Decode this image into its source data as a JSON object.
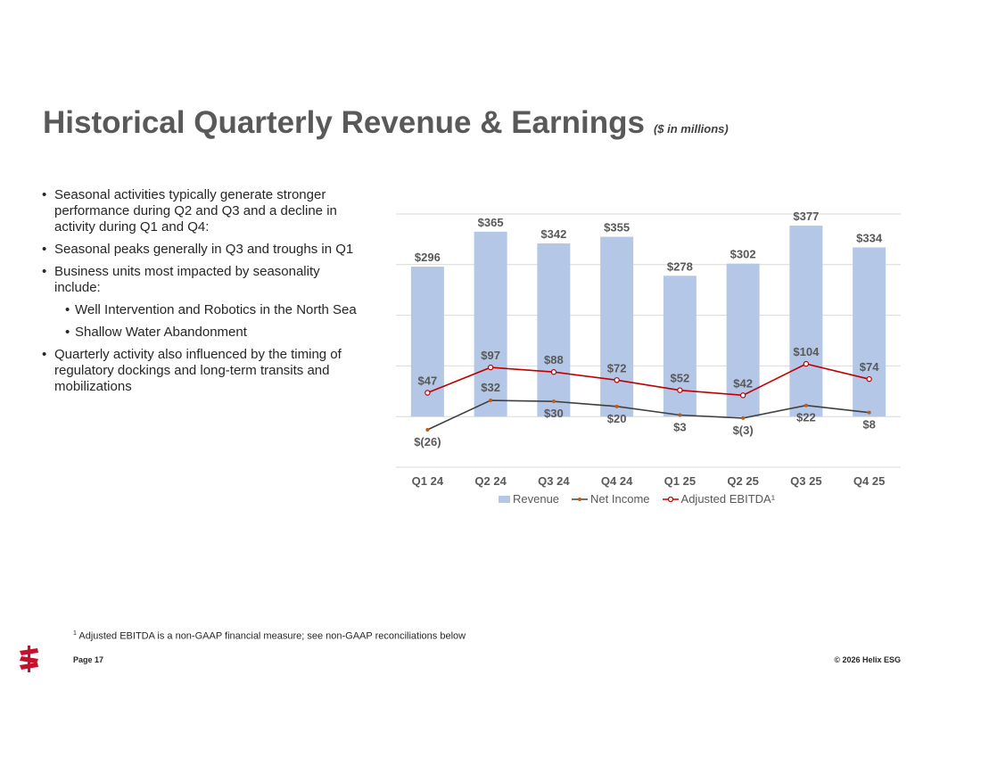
{
  "header": {
    "title": "Historical Quarterly Revenue & Earnings",
    "subtitle": "($ in millions)"
  },
  "bullets": [
    {
      "level": 1,
      "text": "Seasonal activities typically generate stronger performance during Q2 and Q3 and a decline in activity during Q1 and Q4:"
    },
    {
      "level": 1,
      "text": "Seasonal peaks generally in Q3 and troughs in Q1"
    },
    {
      "level": 1,
      "text": "Business units most impacted by seasonality include:"
    },
    {
      "level": 2,
      "text": "Well Intervention and Robotics in the North Sea"
    },
    {
      "level": 2,
      "text": "Shallow Water Abandonment"
    },
    {
      "level": 1,
      "text": "Quarterly activity also influenced by the timing of regulatory dockings and long-term transits and mobilizations"
    }
  ],
  "chart_data": {
    "type": "bar",
    "categories": [
      "Q1 24",
      "Q2 24",
      "Q3 24",
      "Q4 24",
      "Q1 25",
      "Q2 25",
      "Q3 25",
      "Q4 25"
    ],
    "ylim": [
      -100,
      400
    ],
    "grid": true,
    "legend_position": "bottom",
    "series": [
      {
        "name": "Revenue",
        "type": "bar",
        "color": "#b4c7e7",
        "values": [
          296,
          365,
          342,
          355,
          278,
          302,
          377,
          334
        ],
        "labels": [
          "$296",
          "$365",
          "$342",
          "$355",
          "$278",
          "$302",
          "$377",
          "$334"
        ]
      },
      {
        "name": "Net Income",
        "type": "line",
        "color": "#404040",
        "marker_color": "#c55a11",
        "values": [
          -26,
          32,
          30,
          20,
          3,
          -3,
          22,
          8
        ],
        "labels": [
          "$(26)",
          "$32",
          "$30",
          "$20",
          "$3",
          "$(3)",
          "$22",
          "$8"
        ]
      },
      {
        "name": "Adjusted EBITDA¹",
        "type": "line",
        "color": "#c00000",
        "marker_color": "#c00000",
        "values": [
          47,
          97,
          88,
          72,
          52,
          42,
          104,
          74
        ],
        "labels": [
          "$47",
          "$97",
          "$88",
          "$72",
          "$52",
          "$42",
          "$104",
          "$74"
        ]
      }
    ]
  },
  "footer": {
    "footnote_mark": "1",
    "footnote": "Adjusted EBITDA is a non-GAAP financial measure; see non-GAAP reconciliations below",
    "page": "Page 17",
    "copyright": "© 2026 Helix ESG"
  },
  "colors": {
    "accent": "#c8102e"
  }
}
